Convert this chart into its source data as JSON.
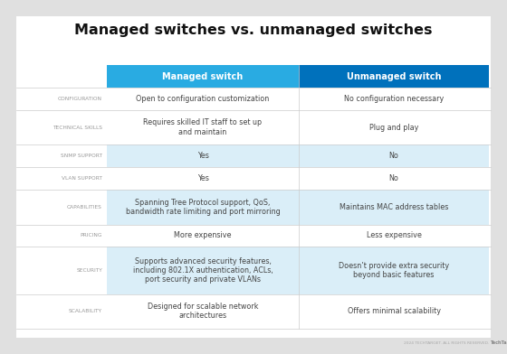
{
  "title": "Managed switches vs. unmanaged switches",
  "background_color": "#e0e0e0",
  "card_color": "#ffffff",
  "header_col1_color": "#29abe2",
  "header_col2_color": "#0071bc",
  "header_text_color": "#ffffff",
  "row_bg_shaded": "#daeef8",
  "row_bg_plain": "#ffffff",
  "label_color": "#999999",
  "cell_text_color": "#444444",
  "divider_color": "#cccccc",
  "col_headers": [
    "Managed switch",
    "Unmanaged switch"
  ],
  "rows": [
    {
      "label": "CONFIGURATION",
      "col1": "Open to configuration customization",
      "col2": "No configuration necessary",
      "shaded": false
    },
    {
      "label": "TECHNICAL SKILLS",
      "col1": "Requires skilled IT staff to set up\nand maintain",
      "col2": "Plug and play",
      "shaded": false
    },
    {
      "label": "SNMP SUPPORT",
      "col1": "Yes",
      "col2": "No",
      "shaded": true
    },
    {
      "label": "VLAN SUPPORT",
      "col1": "Yes",
      "col2": "No",
      "shaded": false
    },
    {
      "label": "CAPABILITIES",
      "col1": "Spanning Tree Protocol support, QoS,\nbandwidth rate limiting and port mirroring",
      "col2": "Maintains MAC address tables",
      "shaded": true
    },
    {
      "label": "PRICING",
      "col1": "More expensive",
      "col2": "Less expensive",
      "shaded": false
    },
    {
      "label": "SECURITY",
      "col1": "Supports advanced security features,\nincluding 802.1X authentication, ACLs,\nport security and private VLANs",
      "col2": "Doesn’t provide extra security\nbeyond basic features",
      "shaded": true
    },
    {
      "label": "SCALABILITY",
      "col1": "Designed for scalable network\narchitectures",
      "col2": "Offers minimal scalability",
      "shaded": false
    }
  ],
  "footer_text": "2024 TECHTARGET. ALL RIGHTS RESERVED.",
  "footer_logo": "TechTarget"
}
